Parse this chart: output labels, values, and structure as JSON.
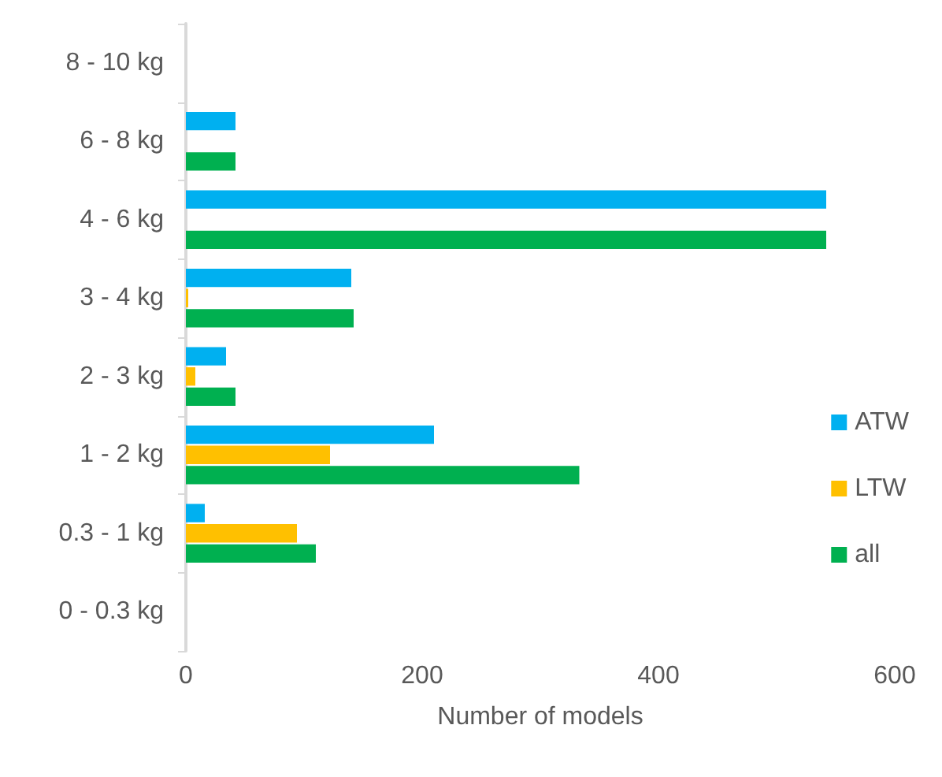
{
  "chart_data": {
    "type": "bar",
    "orientation": "horizontal",
    "xlabel": "Number of models",
    "categories": [
      "8 - 10 kg",
      "6 - 8 kg",
      "4 - 6 kg",
      "3 - 4 kg",
      "2 - 3 kg",
      "1 - 2 kg",
      "0.3 - 1 kg",
      "0 - 0.3 kg"
    ],
    "series": [
      {
        "name": "ATW",
        "color": "#00b0f0",
        "values": [
          0,
          42,
          542,
          140,
          34,
          210,
          16,
          0
        ]
      },
      {
        "name": "LTW",
        "color": "#ffc000",
        "values": [
          0,
          0,
          0,
          2,
          8,
          122,
          94,
          0
        ]
      },
      {
        "name": "all",
        "color": "#00b050",
        "values": [
          0,
          42,
          542,
          142,
          42,
          333,
          110,
          0
        ]
      }
    ],
    "xlim": [
      0,
      600
    ],
    "xticks": [
      0,
      200,
      400,
      600
    ],
    "grid": false,
    "legend": "bottom right"
  }
}
